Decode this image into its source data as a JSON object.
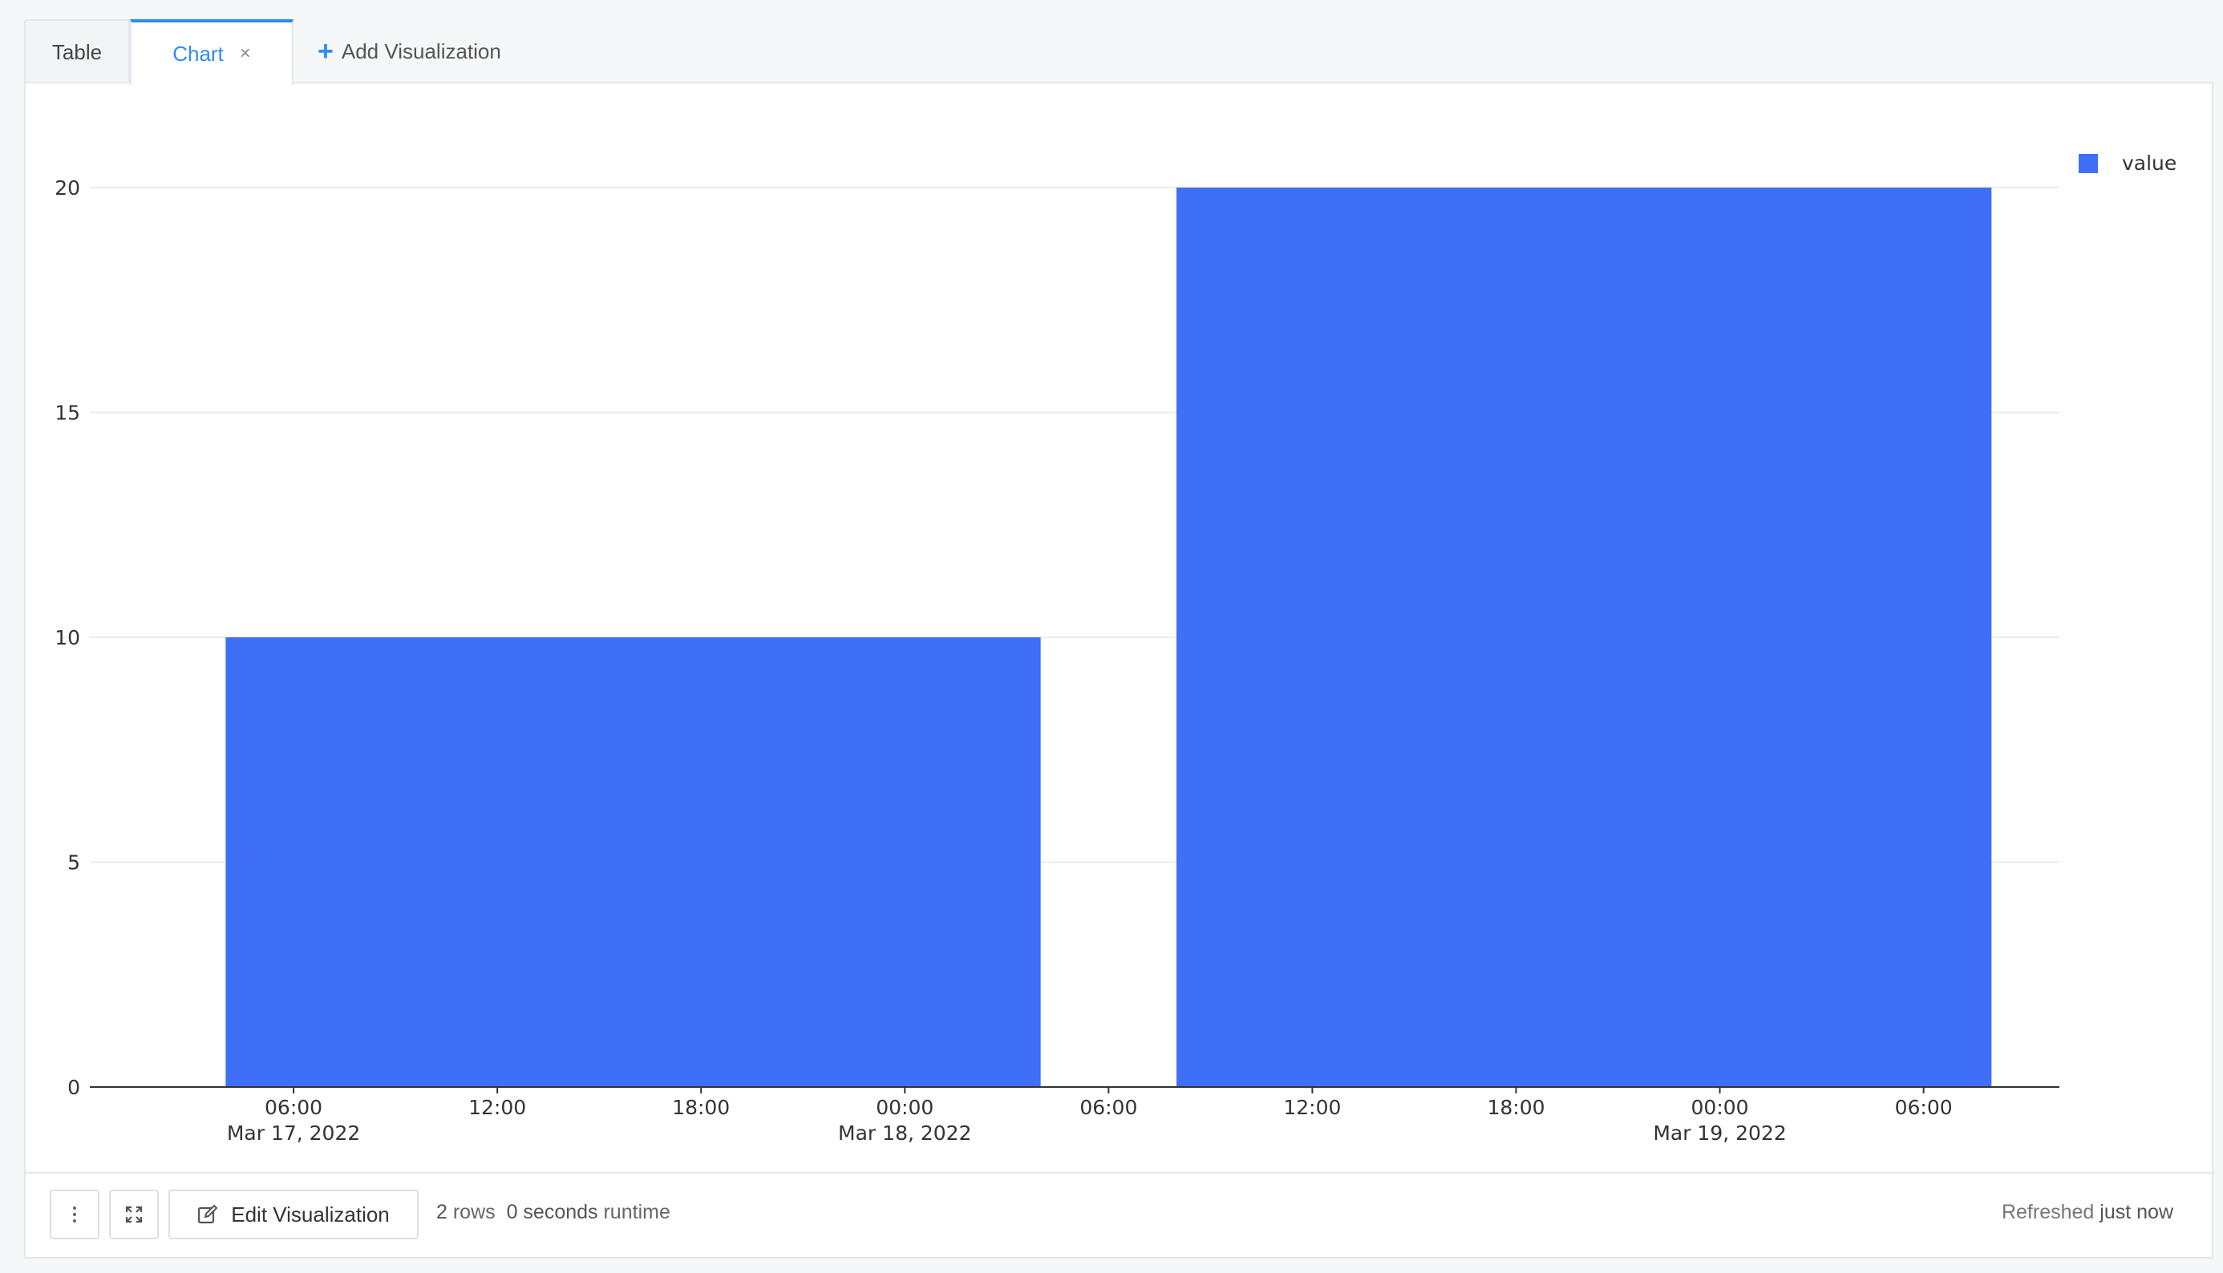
{
  "tabs": {
    "table_label": "Table",
    "chart_label": "Chart",
    "close_symbol": "×",
    "add_label": "Add Visualization"
  },
  "chart_data": {
    "type": "bar",
    "series": [
      {
        "name": "value",
        "color": "#3f6ef7",
        "bars": [
          {
            "start": "2022-03-17T04:00",
            "end": "2022-03-18T04:00",
            "value": 10
          },
          {
            "start": "2022-03-18T08:00",
            "end": "2022-03-19T08:00",
            "value": 20
          }
        ]
      }
    ],
    "ylim": [
      0,
      20
    ],
    "yticks": [
      0,
      5,
      10,
      15,
      20
    ],
    "xrange": [
      "2022-03-17T00:00",
      "2022-03-19T10:00"
    ],
    "xticks": [
      {
        "time": "2022-03-17T06:00",
        "line1": "06:00",
        "line2": "Mar 17, 2022"
      },
      {
        "time": "2022-03-17T12:00",
        "line1": "12:00",
        "line2": ""
      },
      {
        "time": "2022-03-17T18:00",
        "line1": "18:00",
        "line2": ""
      },
      {
        "time": "2022-03-18T00:00",
        "line1": "00:00",
        "line2": "Mar 18, 2022"
      },
      {
        "time": "2022-03-18T06:00",
        "line1": "06:00",
        "line2": ""
      },
      {
        "time": "2022-03-18T12:00",
        "line1": "12:00",
        "line2": ""
      },
      {
        "time": "2022-03-18T18:00",
        "line1": "18:00",
        "line2": ""
      },
      {
        "time": "2022-03-19T00:00",
        "line1": "00:00",
        "line2": "Mar 19, 2022"
      },
      {
        "time": "2022-03-19T06:00",
        "line1": "06:00",
        "line2": ""
      }
    ],
    "grid": true,
    "legend_position": "top-right"
  },
  "footer": {
    "more_icon": "vertical-dots-icon",
    "expand_icon": "expand-icon",
    "edit_label": "Edit Visualization",
    "rows_count": "2",
    "rows_label": "rows",
    "seconds_count": "0 seconds",
    "runtime_label": "runtime",
    "refreshed_label": "Refreshed",
    "refreshed_value": "just now"
  },
  "colors": {
    "accent": "#2d8cf0",
    "bar": "#3f6ef7"
  }
}
